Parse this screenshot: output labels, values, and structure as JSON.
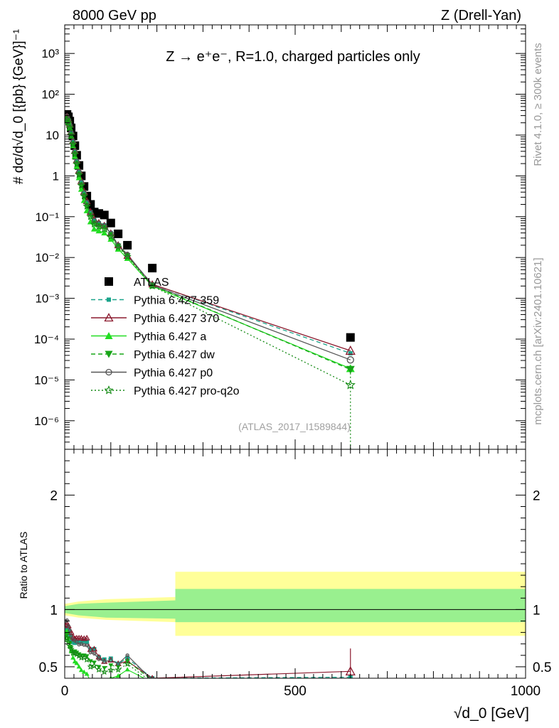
{
  "header": {
    "left": "8000 GeV pp",
    "right": "Z (Drell-Yan)",
    "process": "Z → e⁺e⁻, R=1.0, charged particles only",
    "side_rivet": "Rivet 4.1.0, ≥ 300k events",
    "side_mcplots": "mcplots.cern.ch [arXiv:2401.10621]",
    "analysis_id": "(ATLAS_2017_I1589844)"
  },
  "axes": {
    "top_ylabel": "# dσ/d√d_0 [{pb} {GeV}]⁻¹",
    "ratio_ylabel": "Ratio to ATLAS",
    "xlabel": "√d_0 [GeV]",
    "x_ticks": [
      "0",
      "500",
      "1000"
    ],
    "y_ticks": [
      "10^-6",
      "10^-5",
      "10^-4",
      "10^-3",
      "10^-2",
      "10^-1",
      "1",
      "10",
      "10^2",
      "10^3"
    ],
    "ratio_ticks": [
      "0.5",
      "1",
      "2"
    ]
  },
  "legend": [
    {
      "label": "ATLAS",
      "color": "#000000",
      "marker": "square",
      "dash": "none"
    },
    {
      "label": "Pythia 6.427 359",
      "color": "#1aa38a",
      "marker": "smallsquare",
      "dash": "dashed"
    },
    {
      "label": "Pythia 6.427 370",
      "color": "#8b1a2e",
      "marker": "triangle-open",
      "dash": "solid"
    },
    {
      "label": "Pythia 6.427 a",
      "color": "#22dd22",
      "marker": "triangle",
      "dash": "solid"
    },
    {
      "label": "Pythia 6.427 dw",
      "color": "#17a517",
      "marker": "triangle-down",
      "dash": "dashed"
    },
    {
      "label": "Pythia 6.427 p0",
      "color": "#555555",
      "marker": "circle-open",
      "dash": "solid"
    },
    {
      "label": "Pythia 6.427 pro-q2o",
      "color": "#138a13",
      "marker": "star-open",
      "dash": "dotted"
    }
  ],
  "chart_data": {
    "type": "scatter",
    "title": "Z → e⁺e⁻, R=1.0, charged particles only",
    "xlabel": "√d_0 [GeV]",
    "ylabel": "# dσ/d√d_0 [{pb} {GeV}]⁻¹",
    "xlim": [
      0,
      1000
    ],
    "ylim_log": [
      -6.7,
      3.7
    ],
    "ratio_ylim": [
      0.4,
      2.4
    ],
    "x": [
      2,
      5,
      8,
      11,
      14,
      18,
      22,
      26,
      31,
      36,
      42,
      48,
      56,
      64,
      74,
      86,
      100,
      116,
      136,
      190,
      620
    ],
    "series": [
      {
        "name": "ATLAS",
        "values": [
          30,
          32,
          28,
          22,
          15,
          9.5,
          5.5,
          3.2,
          1.8,
          1.0,
          0.55,
          0.32,
          0.2,
          0.13,
          0.12,
          0.11,
          0.07,
          0.038,
          0.02,
          0.0055,
          0.00011
        ]
      },
      {
        "name": "Pythia 6.427 359",
        "values": [
          25,
          27,
          23,
          17,
          11,
          6.8,
          3.9,
          2.3,
          1.3,
          0.72,
          0.4,
          0.23,
          0.13,
          0.085,
          0.07,
          0.062,
          0.04,
          0.02,
          0.0115,
          0.0022,
          4.5e-05
        ]
      },
      {
        "name": "Pythia 6.427 370",
        "values": [
          26,
          28,
          24,
          18,
          12,
          7.2,
          4.1,
          2.4,
          1.35,
          0.75,
          0.41,
          0.24,
          0.13,
          0.085,
          0.07,
          0.06,
          0.039,
          0.02,
          0.011,
          0.0022,
          5.2e-05
        ]
      },
      {
        "name": "Pythia 6.427 a",
        "values": [
          24,
          26,
          21,
          15,
          9.5,
          5.5,
          3.0,
          1.7,
          0.9,
          0.47,
          0.25,
          0.14,
          0.075,
          0.05,
          0.045,
          0.04,
          0.028,
          0.016,
          0.0095,
          0.002,
          1.9e-05
        ]
      },
      {
        "name": "Pythia 6.427 dw",
        "values": [
          23,
          25,
          21,
          15.5,
          10,
          6.0,
          3.5,
          2.0,
          1.1,
          0.6,
          0.33,
          0.19,
          0.11,
          0.07,
          0.06,
          0.054,
          0.036,
          0.019,
          0.011,
          0.0021,
          1.8e-05
        ]
      },
      {
        "name": "Pythia 6.427 p0",
        "values": [
          27,
          29,
          24,
          18,
          11.5,
          7.0,
          4.0,
          2.3,
          1.25,
          0.7,
          0.38,
          0.22,
          0.125,
          0.08,
          0.068,
          0.06,
          0.039,
          0.02,
          0.012,
          0.0021,
          3.1e-05
        ]
      },
      {
        "name": "Pythia 6.427 pro-q2o",
        "values": [
          22,
          24,
          20,
          15,
          9.8,
          5.9,
          3.4,
          1.95,
          1.07,
          0.58,
          0.32,
          0.18,
          0.1,
          0.066,
          0.057,
          0.05,
          0.033,
          0.018,
          0.0105,
          0.002,
          7.5e-06
        ]
      }
    ],
    "ratio_band": {
      "green": [
        [
          0,
          0.97,
          1.03
        ],
        [
          30,
          0.95,
          1.05
        ],
        [
          90,
          0.93,
          1.06
        ],
        [
          240,
          0.92,
          1.08
        ],
        [
          240,
          0.89,
          1.18
        ],
        [
          1000,
          0.89,
          1.18
        ]
      ],
      "yellow": [
        [
          0,
          0.95,
          1.05
        ],
        [
          30,
          0.93,
          1.07
        ],
        [
          90,
          0.91,
          1.09
        ],
        [
          240,
          0.89,
          1.11
        ],
        [
          240,
          0.77,
          1.33
        ],
        [
          1000,
          0.77,
          1.33
        ]
      ]
    },
    "ratio_370_last": 0.46
  }
}
